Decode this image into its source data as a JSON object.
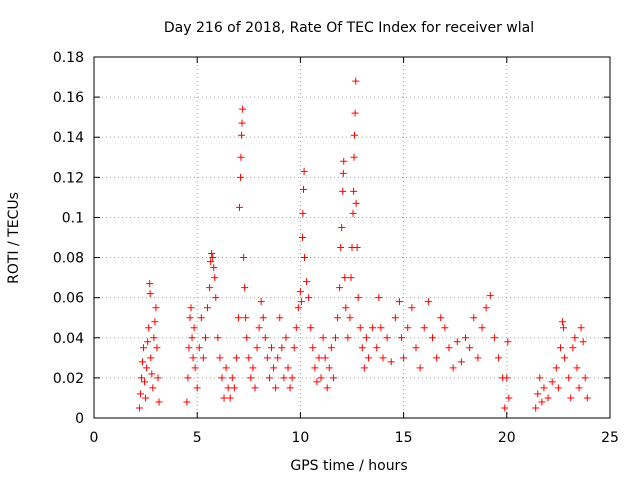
{
  "chart_data": {
    "type": "scatter",
    "title": "Day 216 of 2018, Rate Of TEC Index for receiver wlal",
    "xlabel": "GPS time / hours",
    "ylabel": "ROTI / TECUs",
    "xlim": [
      0,
      25
    ],
    "ylim": [
      0,
      0.18
    ],
    "xticks": [
      0,
      5,
      10,
      15,
      20,
      25
    ],
    "xtick_labels": [
      "0",
      "5",
      "10",
      "15",
      "20",
      "25"
    ],
    "yticks": [
      0,
      0.02,
      0.04,
      0.06,
      0.08,
      0.1,
      0.12,
      0.14,
      0.16,
      0.18
    ],
    "ytick_labels": [
      "0",
      "0.02",
      "0.04",
      "0.06",
      "0.08",
      "0.1",
      "0.12",
      "0.14",
      "0.16",
      "0.18"
    ],
    "grid": true,
    "marker": "+",
    "color": "#ff0000",
    "series": [
      {
        "name": "ROTI",
        "points": [
          [
            2.2,
            0.005
          ],
          [
            2.25,
            0.012
          ],
          [
            2.3,
            0.02
          ],
          [
            2.35,
            0.028
          ],
          [
            2.4,
            0.035
          ],
          [
            2.45,
            0.018
          ],
          [
            2.5,
            0.01
          ],
          [
            2.55,
            0.025
          ],
          [
            2.6,
            0.038
          ],
          [
            2.65,
            0.045
          ],
          [
            2.7,
            0.067
          ],
          [
            2.72,
            0.062
          ],
          [
            2.75,
            0.03
          ],
          [
            2.8,
            0.022
          ],
          [
            2.85,
            0.015
          ],
          [
            2.9,
            0.04
          ],
          [
            2.95,
            0.048
          ],
          [
            3.0,
            0.055
          ],
          [
            3.05,
            0.035
          ],
          [
            3.1,
            0.02
          ],
          [
            3.15,
            0.008
          ],
          [
            4.5,
            0.008
          ],
          [
            4.55,
            0.02
          ],
          [
            4.6,
            0.035
          ],
          [
            4.65,
            0.05
          ],
          [
            4.7,
            0.055
          ],
          [
            4.75,
            0.04
          ],
          [
            4.8,
            0.03
          ],
          [
            4.85,
            0.045
          ],
          [
            4.9,
            0.025
          ],
          [
            5.0,
            0.015
          ],
          [
            5.1,
            0.035
          ],
          [
            5.2,
            0.05
          ],
          [
            5.3,
            0.03
          ],
          [
            5.4,
            0.04
          ],
          [
            5.5,
            0.055
          ],
          [
            5.6,
            0.065
          ],
          [
            5.65,
            0.078
          ],
          [
            5.7,
            0.082
          ],
          [
            5.75,
            0.08
          ],
          [
            5.8,
            0.075
          ],
          [
            5.85,
            0.07
          ],
          [
            5.9,
            0.06
          ],
          [
            6.0,
            0.04
          ],
          [
            6.1,
            0.03
          ],
          [
            6.2,
            0.02
          ],
          [
            6.3,
            0.01
          ],
          [
            6.4,
            0.025
          ],
          [
            6.5,
            0.015
          ],
          [
            6.6,
            0.01
          ],
          [
            6.7,
            0.02
          ],
          [
            6.8,
            0.015
          ],
          [
            6.9,
            0.03
          ],
          [
            7.0,
            0.05
          ],
          [
            7.05,
            0.105
          ],
          [
            7.1,
            0.12
          ],
          [
            7.12,
            0.13
          ],
          [
            7.15,
            0.141
          ],
          [
            7.17,
            0.147
          ],
          [
            7.2,
            0.154
          ],
          [
            7.25,
            0.08
          ],
          [
            7.3,
            0.065
          ],
          [
            7.35,
            0.05
          ],
          [
            7.4,
            0.04
          ],
          [
            7.5,
            0.03
          ],
          [
            7.6,
            0.02
          ],
          [
            7.7,
            0.025
          ],
          [
            7.8,
            0.015
          ],
          [
            7.9,
            0.035
          ],
          [
            8.0,
            0.045
          ],
          [
            8.1,
            0.058
          ],
          [
            8.2,
            0.05
          ],
          [
            8.3,
            0.04
          ],
          [
            8.4,
            0.03
          ],
          [
            8.5,
            0.02
          ],
          [
            8.6,
            0.035
          ],
          [
            8.7,
            0.025
          ],
          [
            8.8,
            0.015
          ],
          [
            8.9,
            0.03
          ],
          [
            9.0,
            0.05
          ],
          [
            9.1,
            0.035
          ],
          [
            9.2,
            0.02
          ],
          [
            9.3,
            0.04
          ],
          [
            9.4,
            0.025
          ],
          [
            9.5,
            0.015
          ],
          [
            9.6,
            0.02
          ],
          [
            9.7,
            0.035
          ],
          [
            9.8,
            0.045
          ],
          [
            9.9,
            0.055
          ],
          [
            10.0,
            0.063
          ],
          [
            10.05,
            0.058
          ],
          [
            10.1,
            0.09
          ],
          [
            10.12,
            0.102
          ],
          [
            10.15,
            0.114
          ],
          [
            10.18,
            0.123
          ],
          [
            10.2,
            0.08
          ],
          [
            10.3,
            0.068
          ],
          [
            10.4,
            0.06
          ],
          [
            10.5,
            0.045
          ],
          [
            10.6,
            0.035
          ],
          [
            10.7,
            0.025
          ],
          [
            10.8,
            0.018
          ],
          [
            10.9,
            0.03
          ],
          [
            11.0,
            0.02
          ],
          [
            11.1,
            0.04
          ],
          [
            11.2,
            0.03
          ],
          [
            11.3,
            0.015
          ],
          [
            11.4,
            0.025
          ],
          [
            11.5,
            0.035
          ],
          [
            11.6,
            0.02
          ],
          [
            11.7,
            0.04
          ],
          [
            11.8,
            0.05
          ],
          [
            11.9,
            0.065
          ],
          [
            11.95,
            0.085
          ],
          [
            12.0,
            0.095
          ],
          [
            12.05,
            0.113
          ],
          [
            12.08,
            0.122
          ],
          [
            12.1,
            0.128
          ],
          [
            12.15,
            0.07
          ],
          [
            12.2,
            0.055
          ],
          [
            12.3,
            0.04
          ],
          [
            12.4,
            0.05
          ],
          [
            12.45,
            0.07
          ],
          [
            12.5,
            0.085
          ],
          [
            12.55,
            0.102
          ],
          [
            12.58,
            0.113
          ],
          [
            12.6,
            0.13
          ],
          [
            12.62,
            0.141
          ],
          [
            12.65,
            0.152
          ],
          [
            12.68,
            0.168
          ],
          [
            12.7,
            0.107
          ],
          [
            12.75,
            0.085
          ],
          [
            12.8,
            0.06
          ],
          [
            12.9,
            0.045
          ],
          [
            13.0,
            0.035
          ],
          [
            13.1,
            0.025
          ],
          [
            13.2,
            0.04
          ],
          [
            13.3,
            0.03
          ],
          [
            13.5,
            0.045
          ],
          [
            13.7,
            0.035
          ],
          [
            13.8,
            0.06
          ],
          [
            13.9,
            0.045
          ],
          [
            14.0,
            0.03
          ],
          [
            14.2,
            0.04
          ],
          [
            14.4,
            0.028
          ],
          [
            14.6,
            0.05
          ],
          [
            14.8,
            0.058
          ],
          [
            14.9,
            0.04
          ],
          [
            15.0,
            0.03
          ],
          [
            15.2,
            0.045
          ],
          [
            15.4,
            0.055
          ],
          [
            15.6,
            0.035
          ],
          [
            15.8,
            0.025
          ],
          [
            16.0,
            0.045
          ],
          [
            16.2,
            0.058
          ],
          [
            16.4,
            0.04
          ],
          [
            16.6,
            0.03
          ],
          [
            16.8,
            0.05
          ],
          [
            17.0,
            0.045
          ],
          [
            17.2,
            0.035
          ],
          [
            17.4,
            0.025
          ],
          [
            17.6,
            0.038
          ],
          [
            17.8,
            0.028
          ],
          [
            18.0,
            0.04
          ],
          [
            18.2,
            0.035
          ],
          [
            18.4,
            0.05
          ],
          [
            18.6,
            0.03
          ],
          [
            18.8,
            0.045
          ],
          [
            19.0,
            0.055
          ],
          [
            19.2,
            0.061
          ],
          [
            19.4,
            0.04
          ],
          [
            19.6,
            0.03
          ],
          [
            19.8,
            0.02
          ],
          [
            19.9,
            0.005
          ],
          [
            20.0,
            0.02
          ],
          [
            20.05,
            0.038
          ],
          [
            20.1,
            0.01
          ],
          [
            21.4,
            0.005
          ],
          [
            21.5,
            0.012
          ],
          [
            21.6,
            0.02
          ],
          [
            21.7,
            0.008
          ],
          [
            21.8,
            0.015
          ],
          [
            22.0,
            0.01
          ],
          [
            22.2,
            0.018
          ],
          [
            22.4,
            0.025
          ],
          [
            22.5,
            0.015
          ],
          [
            22.6,
            0.035
          ],
          [
            22.7,
            0.048
          ],
          [
            22.75,
            0.045
          ],
          [
            22.8,
            0.03
          ],
          [
            23.0,
            0.02
          ],
          [
            23.1,
            0.01
          ],
          [
            23.2,
            0.035
          ],
          [
            23.3,
            0.04
          ],
          [
            23.4,
            0.025
          ],
          [
            23.5,
            0.015
          ],
          [
            23.6,
            0.045
          ],
          [
            23.7,
            0.038
          ],
          [
            23.8,
            0.02
          ],
          [
            23.9,
            0.01
          ]
        ]
      }
    ]
  }
}
